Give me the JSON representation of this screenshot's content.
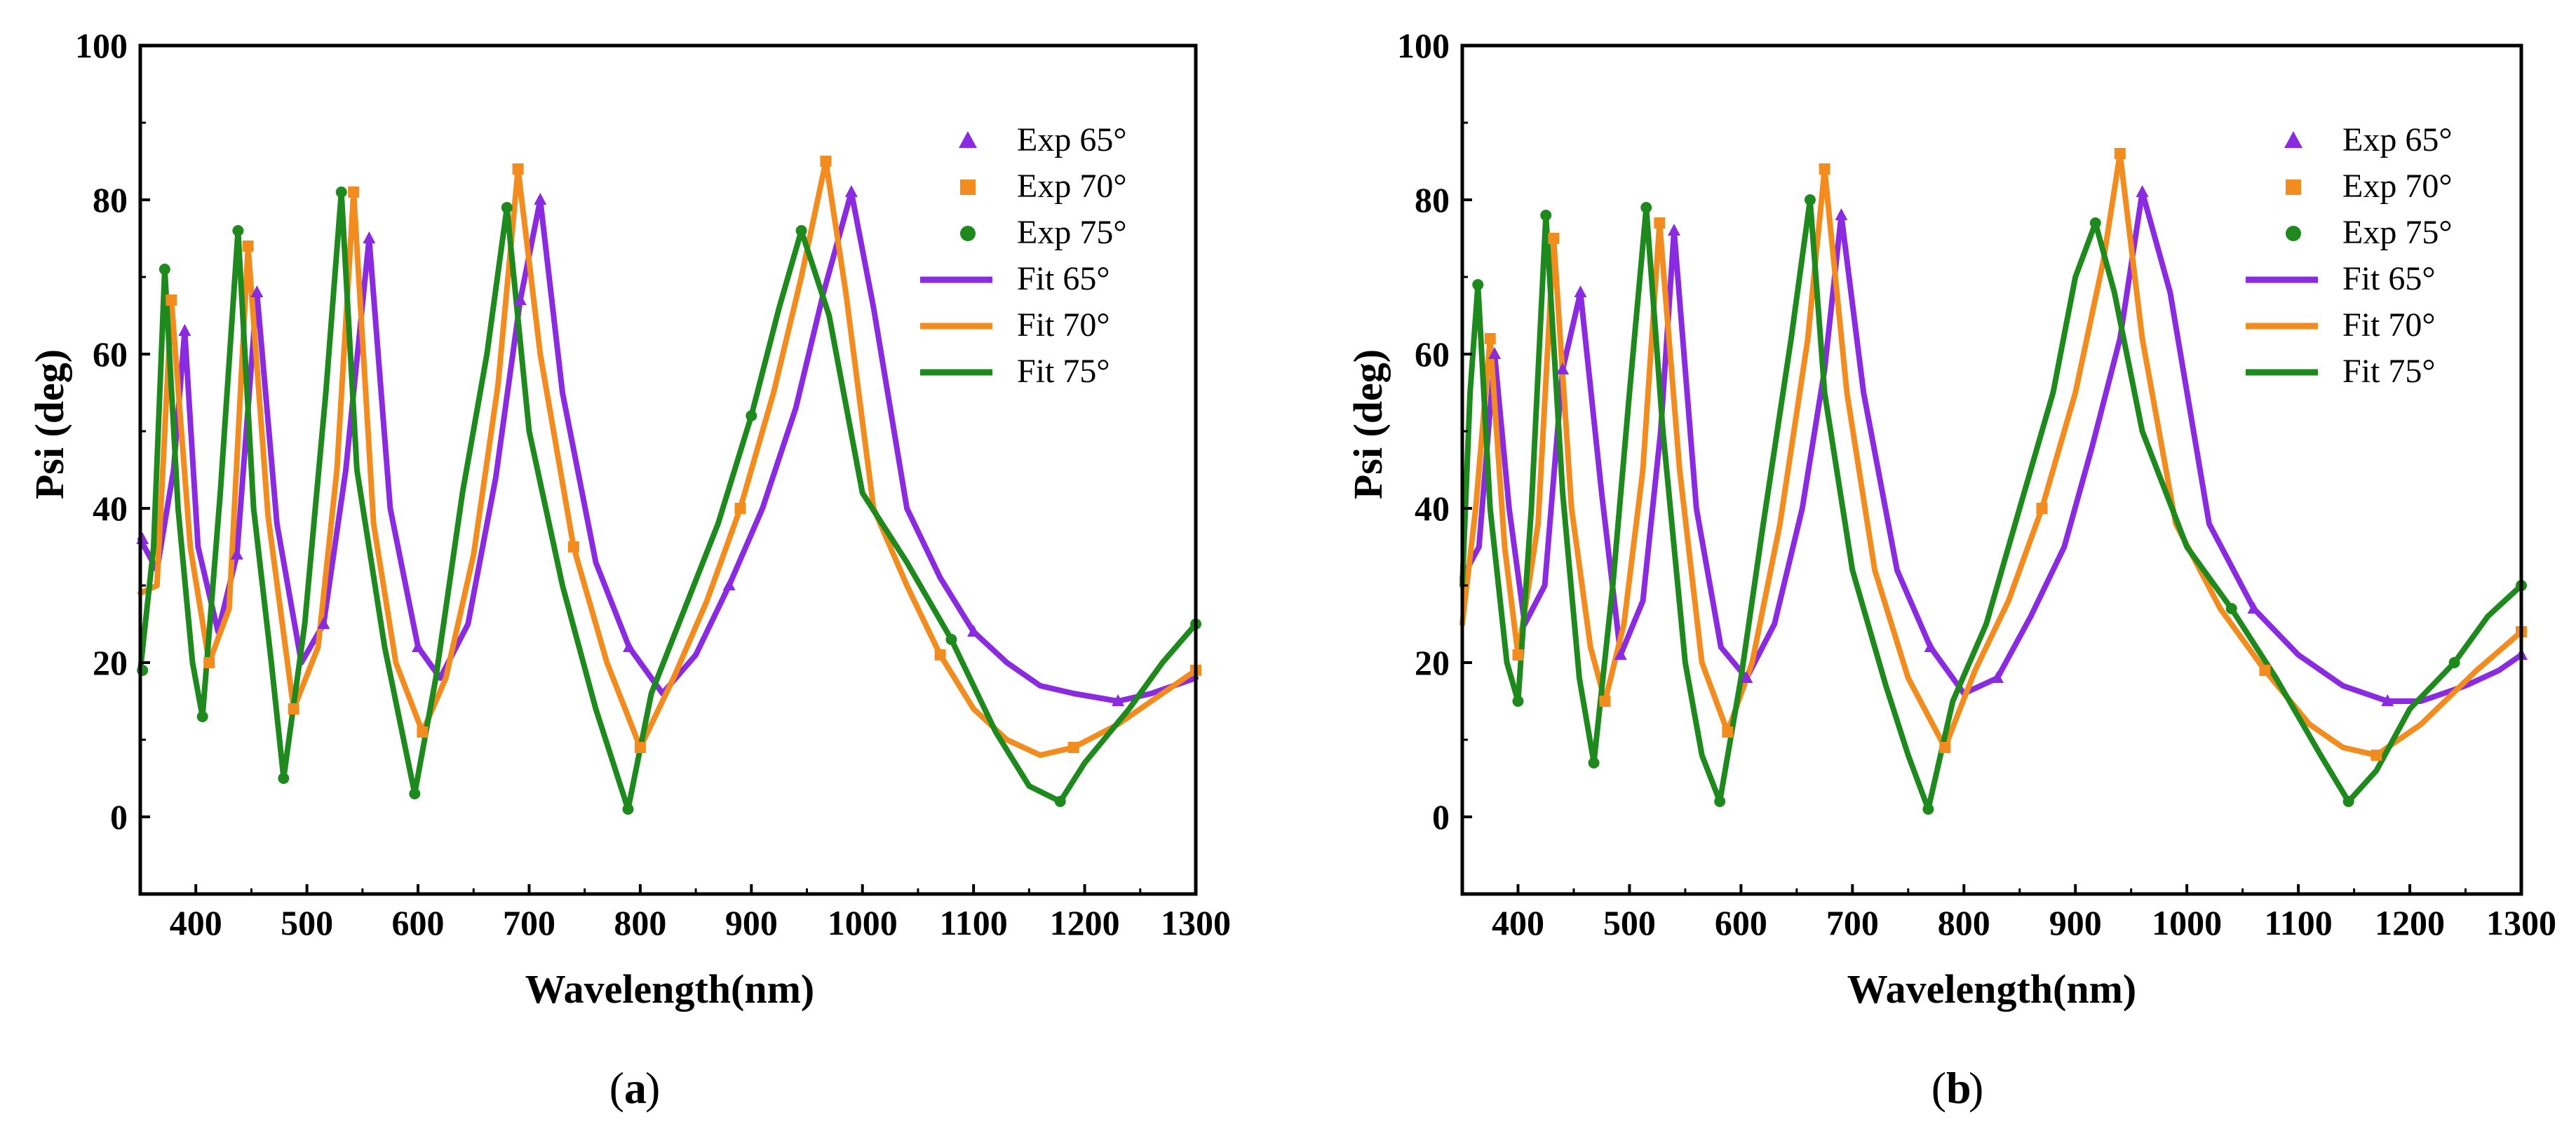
{
  "chart_data": [
    {
      "type": "line",
      "caption": "a",
      "xlabel": "Wavelength(nm)",
      "ylabel": "Psi (deg)",
      "xlim": [
        350,
        1300
      ],
      "ylim": [
        -10,
        100
      ],
      "xticks": [
        400,
        500,
        600,
        700,
        800,
        900,
        1000,
        1100,
        1200,
        1300
      ],
      "yticks": [
        0,
        20,
        40,
        60,
        80,
        100
      ],
      "grid": false,
      "legend_position": "top-right",
      "series": [
        {
          "name": "Fit 65°",
          "marker_name": "Exp 65°",
          "marker": "triangle",
          "color": "#8a2be2",
          "x": [
            350,
            365,
            380,
            390,
            402,
            420,
            437,
            455,
            473,
            495,
            515,
            535,
            556,
            575,
            600,
            620,
            645,
            670,
            692,
            710,
            730,
            760,
            790,
            820,
            850,
            880,
            910,
            940,
            965,
            990,
            1010,
            1040,
            1070,
            1100,
            1130,
            1160,
            1190,
            1230,
            1260,
            1300
          ],
          "y": [
            36,
            32,
            45,
            63,
            35,
            24,
            34,
            68,
            38,
            20,
            25,
            45,
            75,
            40,
            22,
            18,
            25,
            44,
            67,
            80,
            55,
            33,
            22,
            16,
            21,
            30,
            40,
            53,
            68,
            81,
            66,
            40,
            31,
            24,
            20,
            17,
            16,
            15,
            16,
            18
          ]
        },
        {
          "name": "Fit 70°",
          "marker_name": "Exp 70°",
          "marker": "square",
          "color": "#f28c1e",
          "x": [
            350,
            365,
            378,
            395,
            412,
            430,
            447,
            465,
            488,
            510,
            527,
            542,
            560,
            580,
            604,
            625,
            650,
            672,
            690,
            710,
            740,
            770,
            800,
            830,
            860,
            890,
            920,
            945,
            967,
            985,
            1010,
            1040,
            1070,
            1100,
            1130,
            1160,
            1190,
            1230,
            1260,
            1300
          ],
          "y": [
            29,
            30,
            67,
            35,
            20,
            27,
            74,
            39,
            14,
            22,
            45,
            81,
            38,
            20,
            11,
            18,
            34,
            56,
            84,
            60,
            35,
            20,
            9,
            18,
            28,
            40,
            55,
            70,
            85,
            68,
            40,
            30,
            21,
            14,
            10,
            8,
            9,
            12,
            15,
            19
          ]
        },
        {
          "name": "Fit 75°",
          "marker_name": "Exp 75°",
          "marker": "circle",
          "color": "#1e8a1e",
          "x": [
            350,
            362,
            372,
            384,
            397,
            406,
            422,
            438,
            452,
            468,
            479,
            498,
            517,
            531,
            545,
            570,
            597,
            616,
            640,
            662,
            680,
            700,
            730,
            760,
            789,
            810,
            840,
            870,
            900,
            925,
            945,
            970,
            1000,
            1040,
            1080,
            1120,
            1150,
            1178,
            1200,
            1240,
            1270,
            1300
          ],
          "y": [
            19,
            35,
            71,
            40,
            20,
            13,
            42,
            76,
            40,
            20,
            5,
            25,
            55,
            81,
            45,
            22,
            3,
            18,
            42,
            60,
            79,
            50,
            30,
            14,
            1,
            16,
            27,
            38,
            52,
            66,
            76,
            65,
            42,
            33,
            23,
            11,
            4,
            2,
            7,
            14,
            20,
            25
          ]
        }
      ],
      "experimental_markers": [
        {
          "series": "Exp 65°",
          "points": [
            [
              352,
              36
            ],
            [
              390,
              63
            ],
            [
              437,
              34
            ],
            [
              455,
              68
            ],
            [
              515,
              25
            ],
            [
              556,
              75
            ],
            [
              600,
              22
            ],
            [
              692,
              67
            ],
            [
              710,
              80
            ],
            [
              790,
              22
            ],
            [
              880,
              30
            ],
            [
              990,
              81
            ],
            [
              1100,
              24
            ],
            [
              1230,
              15
            ]
          ]
        },
        {
          "series": "Exp 70°",
          "points": [
            [
              378,
              67
            ],
            [
              412,
              20
            ],
            [
              447,
              74
            ],
            [
              488,
              14
            ],
            [
              542,
              81
            ],
            [
              604,
              11
            ],
            [
              690,
              84
            ],
            [
              740,
              35
            ],
            [
              800,
              9
            ],
            [
              890,
              40
            ],
            [
              967,
              85
            ],
            [
              1070,
              21
            ],
            [
              1190,
              9
            ],
            [
              1300,
              19
            ]
          ]
        },
        {
          "series": "Exp 75°",
          "points": [
            [
              352,
              19
            ],
            [
              372,
              71
            ],
            [
              406,
              13
            ],
            [
              438,
              76
            ],
            [
              479,
              5
            ],
            [
              531,
              81
            ],
            [
              597,
              3
            ],
            [
              680,
              79
            ],
            [
              789,
              1
            ],
            [
              900,
              52
            ],
            [
              945,
              76
            ],
            [
              1080,
              23
            ],
            [
              1178,
              2
            ],
            [
              1300,
              25
            ]
          ]
        }
      ]
    },
    {
      "type": "line",
      "caption": "b",
      "xlabel": "Wavelength(nm)",
      "ylabel": "Psi (deg)",
      "xlim": [
        350,
        1300
      ],
      "ylim": [
        -10,
        100
      ],
      "xticks": [
        400,
        500,
        600,
        700,
        800,
        900,
        1000,
        1100,
        1200,
        1300
      ],
      "yticks": [
        0,
        20,
        40,
        60,
        80,
        100
      ],
      "grid": false,
      "legend_position": "top-right",
      "series": [
        {
          "name": "Fit 65°",
          "marker_name": "Exp 65°",
          "marker": "triangle",
          "color": "#8a2be2",
          "x": [
            350,
            365,
            379,
            392,
            406,
            424,
            440,
            456,
            475,
            492,
            512,
            528,
            540,
            560,
            582,
            605,
            630,
            655,
            675,
            690,
            710,
            740,
            770,
            800,
            830,
            860,
            890,
            915,
            940,
            960,
            985,
            1020,
            1060,
            1100,
            1140,
            1180,
            1210,
            1250,
            1280,
            1300
          ],
          "y": [
            31,
            35,
            60,
            40,
            25,
            30,
            58,
            68,
            42,
            21,
            28,
            50,
            76,
            40,
            22,
            18,
            25,
            40,
            58,
            78,
            55,
            32,
            22,
            16,
            18,
            26,
            35,
            48,
            62,
            81,
            68,
            38,
            27,
            21,
            17,
            15,
            15,
            17,
            19,
            21
          ]
        },
        {
          "name": "Fit 70°",
          "marker_name": "Exp 70°",
          "marker": "square",
          "color": "#f28c1e",
          "x": [
            350,
            362,
            375,
            388,
            400,
            418,
            432,
            448,
            465,
            478,
            495,
            512,
            527,
            545,
            565,
            588,
            610,
            635,
            660,
            675,
            695,
            720,
            750,
            783,
            810,
            840,
            870,
            900,
            925,
            940,
            960,
            990,
            1030,
            1070,
            1110,
            1140,
            1170,
            1210,
            1260,
            1300
          ],
          "y": [
            25,
            40,
            62,
            35,
            21,
            38,
            75,
            40,
            22,
            15,
            25,
            45,
            77,
            45,
            20,
            11,
            20,
            38,
            62,
            84,
            55,
            32,
            18,
            9,
            19,
            28,
            40,
            55,
            72,
            86,
            62,
            38,
            27,
            19,
            12,
            9,
            8,
            12,
            19,
            24
          ]
        },
        {
          "name": "Fit 75°",
          "marker_name": "Exp 75°",
          "marker": "circle",
          "color": "#1e8a1e",
          "x": [
            350,
            357,
            364,
            375,
            390,
            400,
            412,
            425,
            440,
            455,
            468,
            485,
            500,
            515,
            530,
            550,
            565,
            581,
            600,
            620,
            645,
            662,
            675,
            700,
            730,
            750,
            768,
            790,
            820,
            850,
            880,
            900,
            918,
            935,
            960,
            1000,
            1040,
            1080,
            1120,
            1145,
            1170,
            1200,
            1240,
            1270,
            1300
          ],
          "y": [
            30,
            55,
            69,
            40,
            20,
            15,
            40,
            78,
            42,
            18,
            7,
            30,
            55,
            79,
            50,
            20,
            8,
            2,
            18,
            38,
            62,
            80,
            55,
            32,
            17,
            8,
            1,
            15,
            25,
            40,
            55,
            70,
            77,
            68,
            50,
            35,
            27,
            18,
            8,
            2,
            6,
            14,
            20,
            26,
            30
          ]
        }
      ],
      "experimental_markers": [
        {
          "series": "Exp 65°",
          "points": [
            [
              379,
              60
            ],
            [
              440,
              58
            ],
            [
              456,
              68
            ],
            [
              492,
              21
            ],
            [
              540,
              76
            ],
            [
              605,
              18
            ],
            [
              690,
              78
            ],
            [
              770,
              22
            ],
            [
              830,
              18
            ],
            [
              960,
              81
            ],
            [
              1060,
              27
            ],
            [
              1180,
              15
            ],
            [
              1300,
              21
            ]
          ]
        },
        {
          "series": "Exp 70°",
          "points": [
            [
              375,
              62
            ],
            [
              400,
              21
            ],
            [
              432,
              75
            ],
            [
              478,
              15
            ],
            [
              527,
              77
            ],
            [
              588,
              11
            ],
            [
              675,
              84
            ],
            [
              783,
              9
            ],
            [
              870,
              40
            ],
            [
              940,
              86
            ],
            [
              1070,
              19
            ],
            [
              1170,
              8
            ],
            [
              1300,
              24
            ]
          ]
        },
        {
          "series": "Exp 75°",
          "points": [
            [
              364,
              69
            ],
            [
              400,
              15
            ],
            [
              425,
              78
            ],
            [
              468,
              7
            ],
            [
              515,
              79
            ],
            [
              581,
              2
            ],
            [
              662,
              80
            ],
            [
              768,
              1
            ],
            [
              918,
              77
            ],
            [
              1040,
              27
            ],
            [
              1145,
              2
            ],
            [
              1240,
              20
            ],
            [
              1300,
              30
            ]
          ]
        }
      ]
    }
  ]
}
